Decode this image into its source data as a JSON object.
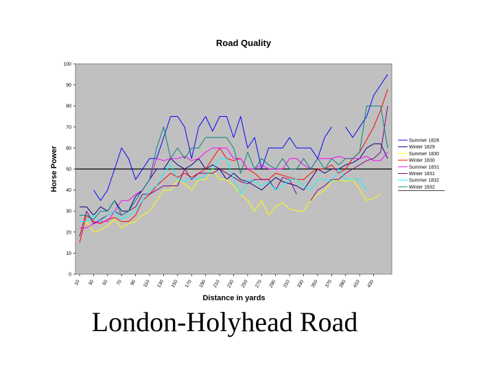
{
  "caption": "London-Holyhead Road",
  "chart_data": {
    "type": "line",
    "title": "Road Quality",
    "xlabel": "Distance in yards",
    "ylabel": "Horse Power",
    "ylim": [
      0,
      100
    ],
    "yticks": [
      0,
      10,
      20,
      30,
      40,
      50,
      60,
      70,
      80,
      90,
      100
    ],
    "x": [
      10,
      20,
      30,
      40,
      50,
      60,
      70,
      80,
      90,
      100,
      110,
      120,
      130,
      140,
      150,
      160,
      170,
      180,
      190,
      200,
      210,
      220,
      230,
      240,
      250,
      260,
      270,
      280,
      290,
      300,
      310,
      320,
      330,
      340,
      350,
      360,
      370,
      380,
      390,
      400,
      410,
      420,
      430,
      440,
      450
    ],
    "xticks": [
      10,
      30,
      50,
      70,
      90,
      110,
      130,
      150,
      170,
      190,
      210,
      230,
      250,
      270,
      290,
      310,
      330,
      350,
      370,
      390,
      410,
      430
    ],
    "reference_line": 50,
    "grid": false,
    "background": "#c0c0c0",
    "legend_position": "right",
    "series": [
      {
        "name": "Summer 1828",
        "color": "#0000ff",
        "values": [
          null,
          null,
          40,
          35,
          40,
          50,
          60,
          55,
          45,
          50,
          55,
          55,
          65,
          75,
          75,
          70,
          55,
          70,
          75,
          68,
          75,
          75,
          65,
          75,
          60,
          65,
          50,
          60,
          60,
          60,
          65,
          60,
          60,
          60,
          55,
          65,
          70,
          null,
          70,
          65,
          70,
          75,
          85,
          90,
          95
        ]
      },
      {
        "name": "Winter 1829",
        "color": "#000080",
        "values": [
          32,
          32,
          28,
          32,
          30,
          35,
          30,
          30,
          37,
          40,
          45,
          50,
          50,
          55,
          52,
          50,
          52,
          55,
          50,
          52,
          50,
          45,
          48,
          45,
          44,
          42,
          40,
          43,
          46,
          44,
          43,
          42,
          40,
          45,
          50,
          48,
          50,
          50,
          52,
          53,
          55,
          60,
          62,
          62,
          55
        ]
      },
      {
        "name": "Summer 1830",
        "color": "#ffff00",
        "values": [
          20,
          25,
          20,
          21,
          23,
          26,
          22,
          24,
          25,
          28,
          30,
          35,
          40,
          40,
          45,
          43,
          40,
          45,
          45,
          50,
          45,
          45,
          42,
          38,
          35,
          30,
          35,
          28,
          32,
          34,
          31,
          30,
          30,
          35,
          38,
          40,
          44,
          45,
          44,
          45,
          40,
          35,
          36,
          38,
          null
        ]
      },
      {
        "name": "Winter 1830",
        "color": "#ff0000",
        "values": [
          15,
          28,
          25,
          24,
          26,
          27,
          25,
          25,
          28,
          35,
          38,
          42,
          45,
          48,
          46,
          48,
          46,
          48,
          50,
          55,
          60,
          55,
          54,
          55,
          50,
          48,
          45,
          45,
          48,
          47,
          46,
          45,
          45,
          48,
          50,
          50,
          52,
          48,
          50,
          55,
          58,
          64,
          70,
          78,
          88
        ]
      },
      {
        "name": "Summer 1831",
        "color": "#ff00ff",
        "values": [
          22,
          22,
          24,
          25,
          25,
          30,
          35,
          35,
          38,
          40,
          45,
          55,
          54,
          55,
          55,
          56,
          54,
          55,
          58,
          60,
          60,
          60,
          55,
          55,
          50,
          50,
          52,
          50,
          50,
          50,
          55,
          55,
          52,
          50,
          55,
          55,
          55,
          56,
          55,
          55,
          55,
          56,
          54,
          54,
          58
        ]
      },
      {
        "name": "Winter 1831",
        "color": "#800080",
        "values": [
          18,
          30,
          24,
          26,
          28,
          30,
          28,
          30,
          32,
          38,
          38,
          40,
          42,
          42,
          42,
          50,
          45,
          48,
          48,
          48,
          50,
          48,
          46,
          44,
          43,
          45,
          45,
          45,
          40,
          46,
          45,
          38,
          null,
          35,
          40,
          42,
          45,
          45,
          48,
          50,
          52,
          54,
          55,
          58,
          80
        ]
      },
      {
        "name": "Summer 1832",
        "color": "#00ffff",
        "values": [
          25,
          25,
          28,
          25,
          28,
          30,
          26,
          28,
          30,
          35,
          40,
          42,
          48,
          52,
          45,
          44,
          46,
          45,
          47,
          50,
          55,
          55,
          45,
          38,
          45,
          44,
          42,
          44,
          40,
          42,
          45,
          45,
          42,
          40,
          45,
          45,
          44,
          50,
          45,
          45,
          45,
          40,
          null,
          null,
          null
        ]
      },
      {
        "name": "Winter 1832",
        "color": "#008080",
        "values": [
          28,
          28,
          26,
          30,
          30,
          35,
          28,
          30,
          35,
          40,
          45,
          60,
          70,
          55,
          60,
          55,
          60,
          60,
          65,
          65,
          65,
          65,
          60,
          48,
          58,
          50,
          55,
          52,
          50,
          55,
          50,
          50,
          55,
          50,
          55,
          50,
          55,
          52,
          55,
          55,
          58,
          80,
          80,
          80,
          60
        ]
      }
    ]
  }
}
